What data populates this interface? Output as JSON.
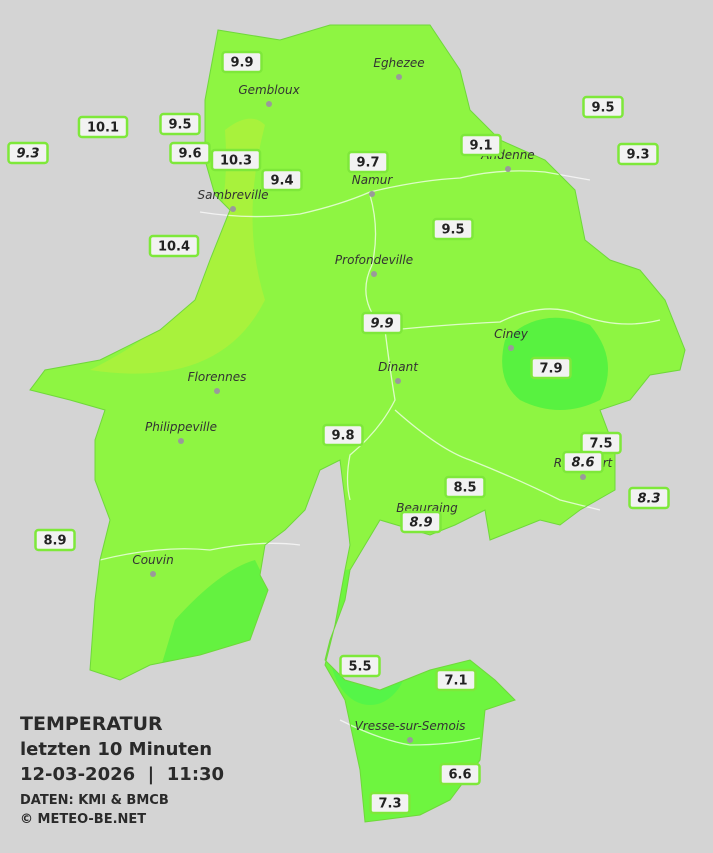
{
  "title": "TEMPERATUR",
  "subtitle": "letzten 10 Minuten",
  "timestamp": "12-03-2026  |  11:30",
  "source": "DATEN: KMI & BMCB",
  "copyright": "© METEO-BE.NET",
  "cities": [
    "Eghezee",
    "Gembloux",
    "Andenne",
    "Namur",
    "Sambreville",
    "Profondeville",
    "Ciney",
    "Dinant",
    "Florennes",
    "Philippeville",
    "Rochefort",
    "Beauraing",
    "Couvin",
    "Vresse-sur-Semois"
  ],
  "stations": [
    {
      "value": 9.9,
      "italic": false
    },
    {
      "value": 10.1,
      "italic": false
    },
    {
      "value": 9.5,
      "italic": false
    },
    {
      "value": 9.6,
      "italic": false
    },
    {
      "value": 10.3,
      "italic": false
    },
    {
      "value": 9.4,
      "italic": false
    },
    {
      "value": 9.7,
      "italic": false
    },
    {
      "value": 9.1,
      "italic": false
    },
    {
      "value": 9.5,
      "italic": false
    },
    {
      "value": 9.3,
      "italic": false
    },
    {
      "value": 9.3,
      "italic": true
    },
    {
      "value": 10.4,
      "italic": false
    },
    {
      "value": 9.5,
      "italic": false
    },
    {
      "value": 9.9,
      "italic": true
    },
    {
      "value": 7.9,
      "italic": false
    },
    {
      "value": 9.8,
      "italic": false
    },
    {
      "value": 7.5,
      "italic": false
    },
    {
      "value": 8.6,
      "italic": true
    },
    {
      "value": 8.5,
      "italic": false
    },
    {
      "value": 8.9,
      "italic": true
    },
    {
      "value": 8.3,
      "italic": true
    },
    {
      "value": 8.9,
      "italic": false
    },
    {
      "value": 5.5,
      "italic": false
    },
    {
      "value": 7.1,
      "italic": false
    },
    {
      "value": 6.6,
      "italic": false
    },
    {
      "value": 7.3,
      "italic": false
    }
  ]
}
